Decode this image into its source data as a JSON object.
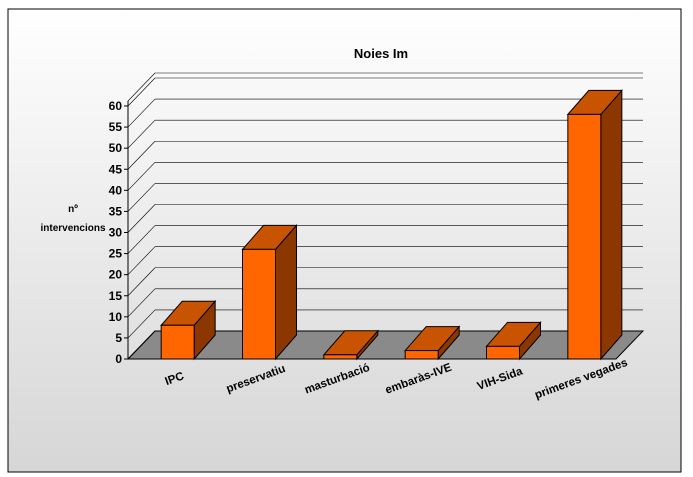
{
  "chart_data": {
    "type": "bar",
    "title": "Noies Im",
    "xlabel": "",
    "ylabel_lines": [
      "nº",
      "intervencions"
    ],
    "categories": [
      "IPC",
      "preservatiu",
      "masturbació",
      "embaràs-IVE",
      "VIH-Sida",
      "primeres vegades"
    ],
    "values": [
      8,
      26,
      1,
      2,
      3,
      58
    ],
    "ylim": [
      0,
      60
    ],
    "yticks": [
      0,
      5,
      10,
      15,
      20,
      25,
      30,
      35,
      40,
      45,
      50,
      55,
      60
    ],
    "grid": true,
    "legend": "none",
    "three_d": true
  },
  "colors": {
    "background": "#ffffff",
    "plot_area": "#dedede",
    "floor": "#8a8a8a",
    "bar_front": "#ff6600",
    "bar_top": "#c85300",
    "bar_side": "#8c3600",
    "grid": "#000000"
  }
}
